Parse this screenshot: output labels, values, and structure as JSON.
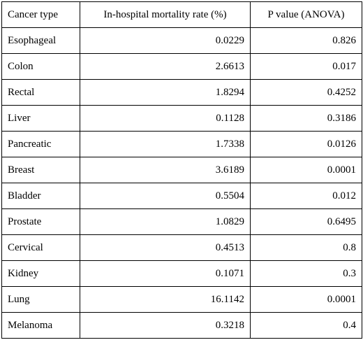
{
  "table": {
    "headers": {
      "cancer_type": "Cancer type",
      "mortality_rate": "In-hospital mortality rate (%)",
      "p_value": "P value (ANOVA)"
    },
    "rows": [
      {
        "type": "Esophageal",
        "rate": "0.0229",
        "p": "0.826"
      },
      {
        "type": "Colon",
        "rate": "2.6613",
        "p": "0.017"
      },
      {
        "type": "Rectal",
        "rate": "1.8294",
        "p": "0.4252"
      },
      {
        "type": "Liver",
        "rate": "0.1128",
        "p": "0.3186"
      },
      {
        "type": "Pancreatic",
        "rate": "1.7338",
        "p": "0.0126"
      },
      {
        "type": "Breast",
        "rate": "3.6189",
        "p": "0.0001"
      },
      {
        "type": "Bladder",
        "rate": "0.5504",
        "p": "0.012"
      },
      {
        "type": "Prostate",
        "rate": "1.0829",
        "p": "0.6495"
      },
      {
        "type": "Cervical",
        "rate": "0.4513",
        "p": "0.8"
      },
      {
        "type": "Kidney",
        "rate": "0.1071",
        "p": "0.3"
      },
      {
        "type": "Lung",
        "rate": "16.1142",
        "p": "0.0001"
      },
      {
        "type": "Melanoma",
        "rate": "0.3218",
        "p": "0.4"
      }
    ]
  }
}
